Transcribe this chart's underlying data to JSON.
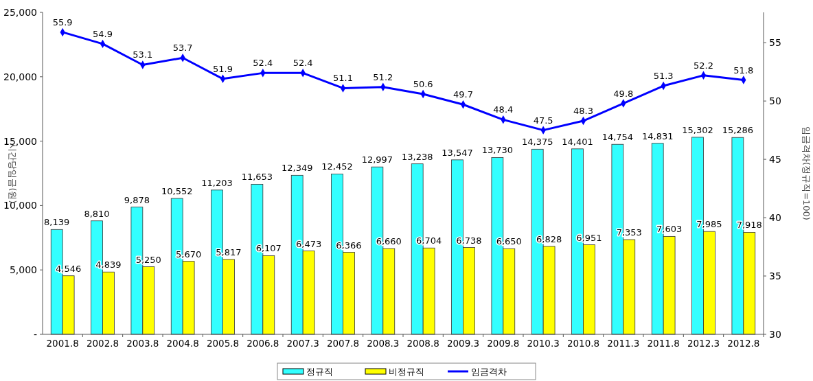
{
  "chart_data": {
    "type": "bar",
    "xlabel": null,
    "ylabel": "시간당임금(원)",
    "y2label": "임금격차(정규직=100)",
    "categories": [
      "2001.8",
      "2002.8",
      "2003.8",
      "2004.8",
      "2005.8",
      "2006.8",
      "2007.3",
      "2007.8",
      "2008.3",
      "2008.8",
      "2009.3",
      "2009.8",
      "2010.3",
      "2010.8",
      "2011.3",
      "2011.8",
      "2012.3",
      "2012.8"
    ],
    "series": [
      {
        "name": "정규직",
        "color": "#33ffff",
        "values": [
          8139,
          8810,
          9878,
          10552,
          11203,
          11653,
          12349,
          12452,
          12997,
          13238,
          13547,
          13730,
          14375,
          14401,
          14754,
          14831,
          15302,
          15286
        ],
        "value_labels": [
          "8,139",
          "8,810",
          "9,878",
          "10,552",
          "11,203",
          "11,653",
          "12,349",
          "12,452",
          "12,997",
          "13,238",
          "13,547",
          "13,730",
          "14,375",
          "14,401",
          "14,754",
          "14,831",
          "15,302",
          "15,286"
        ]
      },
      {
        "name": "비정규직",
        "color": "#ffff00",
        "values": [
          4546,
          4839,
          5250,
          5670,
          5817,
          6107,
          6473,
          6366,
          6660,
          6704,
          6738,
          6650,
          6828,
          6951,
          7353,
          7603,
          7985,
          7918
        ],
        "value_labels": [
          "4,546",
          "4,839",
          "5,250",
          "5,670",
          "5,817",
          "6,107",
          "6,473",
          "6,366",
          "6,660",
          "6,704",
          "6,738",
          "6,650",
          "6,828",
          "6,951",
          "7,353",
          "7,603",
          "7,985",
          "7,918"
        ]
      },
      {
        "name": "임금격차",
        "type": "line",
        "axis": "y2",
        "color": "#0000ff",
        "values": [
          55.9,
          54.9,
          53.1,
          53.7,
          51.9,
          52.4,
          52.4,
          51.1,
          51.2,
          50.6,
          49.7,
          48.4,
          47.5,
          48.3,
          49.8,
          51.3,
          52.2,
          51.8
        ]
      }
    ],
    "ylim": [
      0,
      25000
    ],
    "yticks": [
      {
        "value": 0,
        "label": "-"
      },
      {
        "value": 5000,
        "label": "5,000"
      },
      {
        "value": 10000,
        "label": "10,000"
      },
      {
        "value": 15000,
        "label": "15,000"
      },
      {
        "value": 20000,
        "label": "20,000"
      },
      {
        "value": 25000,
        "label": "25,000"
      }
    ],
    "y2lim": [
      30,
      57.6
    ],
    "y2ticks": [
      30,
      35,
      40,
      45,
      50,
      55
    ],
    "data_labels": true,
    "marker": "diamond",
    "legend": "bottom",
    "grid": false
  }
}
